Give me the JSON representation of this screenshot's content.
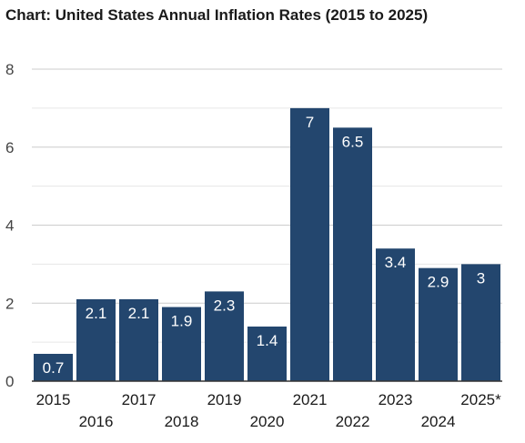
{
  "chart_data": {
    "type": "bar",
    "title": "Chart: United States Annual Inflation Rates (2015 to 2025)",
    "xlabel": "",
    "ylabel": "",
    "categories": [
      "2015",
      "2016",
      "2017",
      "2018",
      "2019",
      "2020",
      "2021",
      "2022",
      "2023",
      "2024",
      "2025*"
    ],
    "values": [
      0.7,
      2.1,
      2.1,
      1.9,
      2.3,
      1.4,
      7,
      6.5,
      3.4,
      2.9,
      3
    ],
    "data_labels": [
      "0.7",
      "2.1",
      "2.1",
      "1.9",
      "2.3",
      "1.4",
      "7",
      "6.5",
      "3.4",
      "2.9",
      "3"
    ],
    "ylim": [
      0,
      8
    ],
    "yticks": [
      "0",
      "2",
      "4",
      "6",
      "8"
    ],
    "grid": true,
    "legend": "none",
    "colors": {
      "bar": "#23466e",
      "grid": "#cccccc",
      "axis": "#333333"
    }
  }
}
